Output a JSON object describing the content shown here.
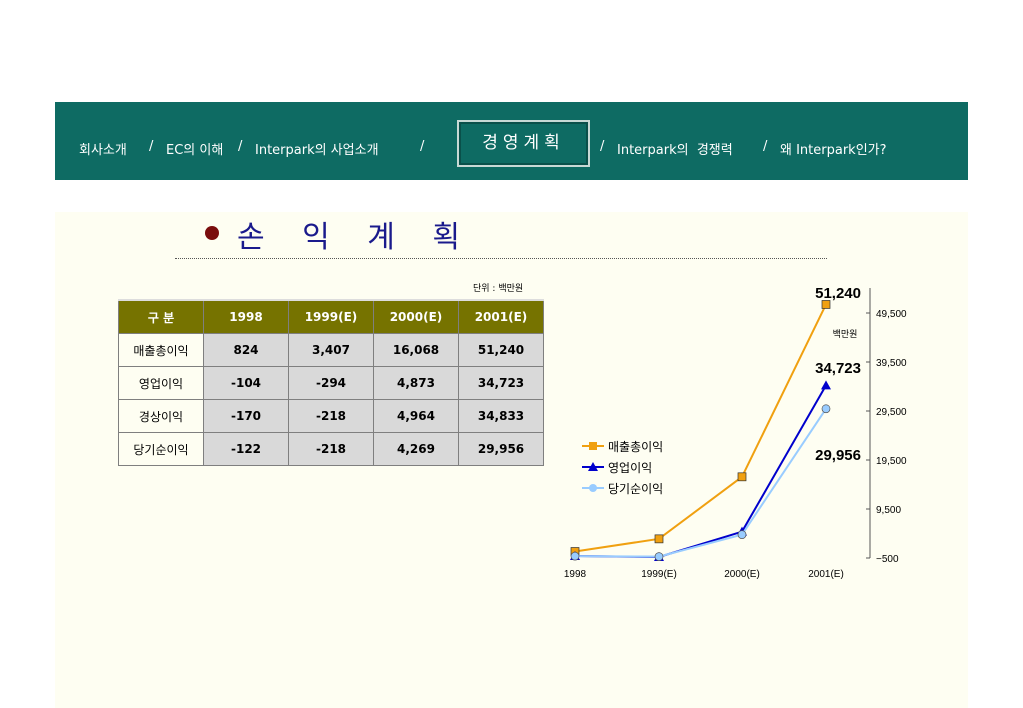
{
  "nav": {
    "items_left": [
      "회사소개",
      "/",
      "EC의 이해",
      "/",
      "Interpark의 사업소개",
      "/"
    ],
    "active": "경영계획",
    "items_right": [
      "/",
      "Interpark의",
      "경쟁력",
      "/",
      "왜 Interpark인가?"
    ]
  },
  "page": {
    "title": "손 익 계 획",
    "unit_note": "단위 : 백만원"
  },
  "table": {
    "header_label": "구  분",
    "years": [
      "1998",
      "1999(E)",
      "2000(E)",
      "2001(E)"
    ],
    "rows": [
      {
        "label": "매출총이익",
        "values": [
          "824",
          "3,407",
          "16,068",
          "51,240"
        ]
      },
      {
        "label": "영업이익",
        "values": [
          "-104",
          "-294",
          "4,873",
          "34,723"
        ]
      },
      {
        "label": "경상이익",
        "values": [
          "-170",
          "-218",
          "4,964",
          "34,833"
        ]
      },
      {
        "label": "당기순이익",
        "values": [
          "-122",
          "-218",
          "4,269",
          "29,956"
        ]
      }
    ]
  },
  "chart_data": {
    "type": "line",
    "categories": [
      "1998",
      "1999(E)",
      "2000(E)",
      "2001(E)"
    ],
    "series": [
      {
        "name": "매출총이익",
        "values": [
          824,
          3407,
          16068,
          51240
        ],
        "color": "#f0a010",
        "marker": "square"
      },
      {
        "name": "영업이익",
        "values": [
          -104,
          -294,
          4873,
          34723
        ],
        "color": "#0000cc",
        "marker": "triangle"
      },
      {
        "name": "당기순이익",
        "values": [
          -122,
          -218,
          4269,
          29956
        ],
        "color": "#99ccff",
        "marker": "circle"
      }
    ],
    "ylim": [
      -500,
      49500
    ],
    "yticks": [
      "49,500",
      "39,500",
      "29,500",
      "19,500",
      "9,500",
      "−500"
    ],
    "ylabel": "백만원",
    "callouts": [
      "51,240",
      "34,723",
      "29,956"
    ],
    "legend_position": "middle-left",
    "grid": false
  }
}
